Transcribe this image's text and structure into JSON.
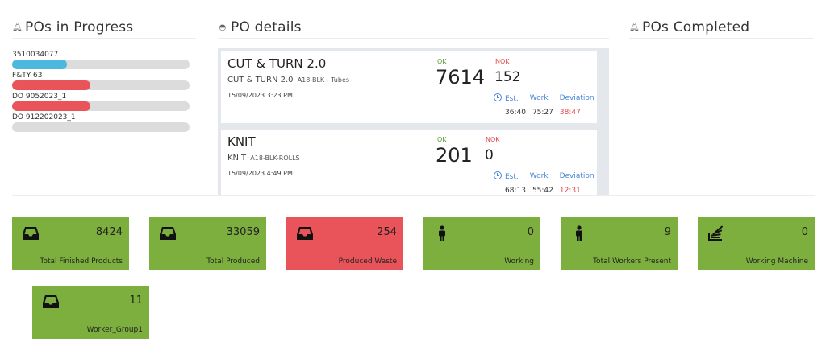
{
  "sections": {
    "in_progress_title": "POs in Progress",
    "details_title": "PO details",
    "completed_title": "POs Completed"
  },
  "progress_items": [
    {
      "label": "3510034077",
      "fill": 0.31,
      "color": "#4db8dd"
    },
    {
      "label": "F&TY 63",
      "fill": 0.44,
      "color": "#e9545a"
    },
    {
      "label": "DO 9052023_1",
      "fill": 0.44,
      "color": "#e9545a"
    },
    {
      "label": "DO 912202023_1",
      "fill": 0,
      "color": "#e9545a"
    }
  ],
  "po_details": [
    {
      "name": "CUT & TURN 2.0",
      "sub_name": "CUT & TURN 2.0",
      "sub_code": "A18-BLK - Tubes",
      "time": "15/09/2023 3:23 PM",
      "ok_label": "OK",
      "ok_value": "7614",
      "nok_label": "NOK",
      "nok_value": "152",
      "est_label": "Est.",
      "work_label": "Work",
      "dev_label": "Deviation",
      "est_value": "36:40",
      "work_value": "75:27",
      "dev_value": "38:47"
    },
    {
      "name": "KNIT",
      "sub_name": "KNIT",
      "sub_code": "A18-BLK-ROLLS",
      "time": "15/09/2023 4:49 PM",
      "ok_label": "OK",
      "ok_value": "201",
      "nok_label": "NOK",
      "nok_value": "0",
      "est_label": "Est.",
      "work_label": "Work",
      "dev_label": "Deviation",
      "est_value": "68:13",
      "work_value": "55:42",
      "dev_value": "12:31"
    }
  ],
  "tiles": [
    {
      "icon": "inbox-icon",
      "value": "8424",
      "label": "Total Finished Products",
      "color": "#7daf3e"
    },
    {
      "icon": "inbox-icon",
      "value": "33059",
      "label": "Total Produced",
      "color": "#7daf3e"
    },
    {
      "icon": "inbox-icon",
      "value": "254",
      "label": "Produced Waste",
      "color": "#e9545a"
    },
    {
      "icon": "person-icon",
      "value": "0",
      "label": "Working",
      "color": "#7daf3e"
    },
    {
      "icon": "person-icon",
      "value": "9",
      "label": "Total Workers Present",
      "color": "#7daf3e"
    },
    {
      "icon": "stack-icon",
      "value": "0",
      "label": "Working Machine",
      "color": "#7daf3e"
    },
    {
      "icon": "inbox-icon",
      "value": "11",
      "label": "Worker_Group1",
      "color": "#7daf3e"
    }
  ]
}
